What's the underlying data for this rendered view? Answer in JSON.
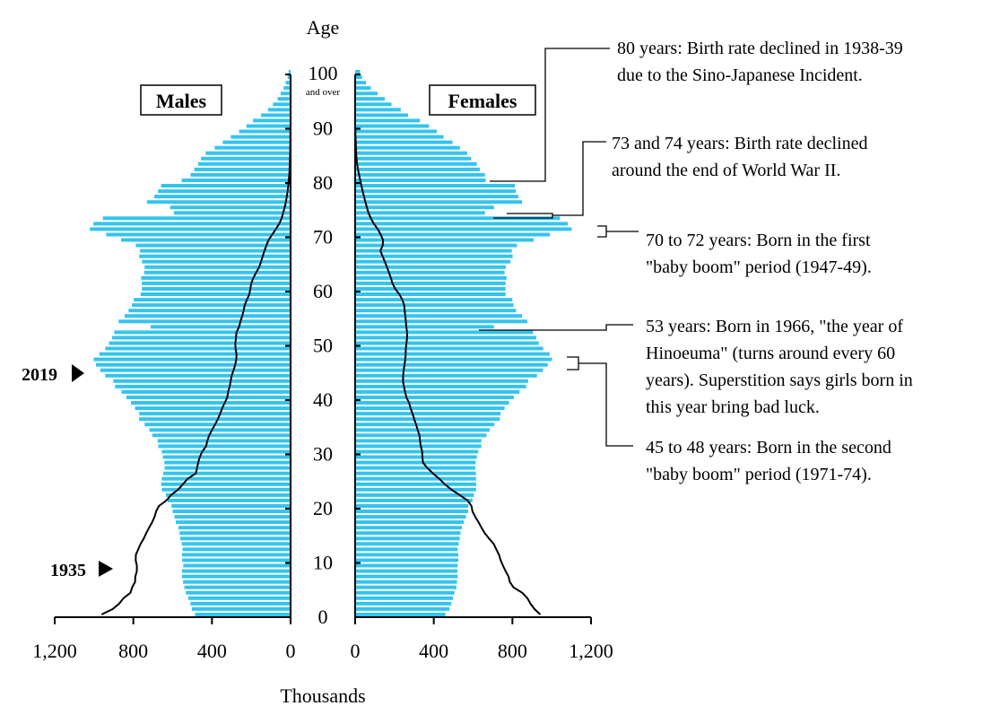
{
  "chart_data": {
    "type": "bar",
    "orientation": "population-pyramid",
    "units": "Thousands",
    "age_axis_title": "Age",
    "age_ticks": [
      "0",
      "10",
      "20",
      "30",
      "40",
      "50",
      "60",
      "70",
      "80",
      "90",
      "100"
    ],
    "age_top_note": "and over",
    "xlabel": "Thousands",
    "x_ticks_left": [
      "1,200",
      "800",
      "400",
      "0"
    ],
    "x_ticks_right": [
      "0",
      "400",
      "800",
      "1,200"
    ],
    "xlim": [
      0,
      1200
    ],
    "panel_labels": {
      "males": "Males",
      "females": "Females"
    },
    "series": [
      {
        "name": "Males",
        "values": [
          486,
          503,
          509,
          521,
          533,
          540,
          547,
          553,
          553,
          546,
          551,
          553,
          550,
          554,
          561,
          565,
          571,
          584,
          591,
          600,
          606,
          625,
          634,
          655,
          658,
          655,
          648,
          641,
          642,
          650,
          655,
          673,
          676,
          703,
          718,
          743,
          771,
          770,
          791,
          812,
          835,
          860,
          893,
          902,
          943,
          968,
          990,
          1002,
          973,
          943,
          924,
          908,
          897,
          712,
          875,
          844,
          824,
          807,
          798,
          763,
          757,
          757,
          760,
          745,
          743,
          756,
          770,
          766,
          787,
          863,
          938,
          1021,
          1003,
          955,
          594,
          613,
          731,
          693,
          675,
          659,
          554,
          509,
          490,
          470,
          456,
          432,
          386,
          345,
          304,
          262,
          225,
          191,
          150,
          115,
          90,
          66,
          50,
          35,
          25,
          15,
          10
        ]
      },
      {
        "name": "Females",
        "values": [
          459,
          480,
          489,
          498,
          505,
          515,
          518,
          522,
          520,
          521,
          525,
          525,
          522,
          527,
          532,
          536,
          543,
          553,
          564,
          575,
          576,
          597,
          604,
          615,
          616,
          615,
          614,
          611,
          613,
          619,
          626,
          642,
          642,
          668,
          684,
          708,
          736,
          740,
          760,
          783,
          807,
          836,
          870,
          880,
          925,
          955,
          980,
          1002,
          989,
          957,
          934,
          921,
          905,
          706,
          876,
          849,
          819,
          806,
          800,
          765,
          765,
          765,
          770,
          760,
          766,
          790,
          801,
          797,
          823,
          908,
          991,
          1102,
          1082,
          1042,
          660,
          706,
          849,
          830,
          817,
          813,
          664,
          660,
          634,
          619,
          590,
          570,
          533,
          495,
          450,
          415,
          376,
          330,
          269,
          232,
          185,
          151,
          114,
          80,
          55,
          35,
          25
        ]
      },
      {
        "name": "1935",
        "values_males": [
          962,
          905,
          872,
          850,
          815,
          806,
          791,
          790,
          782,
          782,
          788,
          787,
          775,
          763,
          747,
          734,
          720,
          704,
          692,
          684,
          670,
          632,
          608,
          572,
          548,
          524,
          482,
          476,
          470,
          462,
          450,
          430,
          424,
          414,
          400,
          384,
          370,
          358,
          348,
          335,
          322,
          318,
          310,
          305,
          300,
          290,
          282,
          276,
          275,
          280,
          281,
          278,
          275,
          262,
          255,
          246,
          239,
          233,
          222,
          210,
          205,
          200,
          190,
          175,
          160,
          150,
          142,
          133,
          123,
          112,
          94,
          75,
          58,
          45,
          38,
          30,
          24,
          19,
          15,
          12,
          9,
          7,
          5,
          4,
          3,
          2,
          2,
          1,
          1,
          1,
          0
        ],
        "values_females": [
          942,
          912,
          892,
          876,
          850,
          805,
          787,
          780,
          765,
          752,
          740,
          732,
          718,
          705,
          681,
          659,
          643,
          628,
          611,
          597,
          592,
          572,
          532,
          490,
          456,
          428,
          396,
          367,
          345,
          342,
          341,
          334,
          330,
          327,
          318,
          310,
          300,
          292,
          282,
          274,
          261,
          254,
          248,
          243,
          244,
          247,
          251,
          255,
          257,
          258,
          261,
          264,
          264,
          260,
          258,
          255,
          252,
          249,
          240,
          225,
          204,
          190,
          182,
          172,
          162,
          151,
          140,
          128,
          140,
          142,
          130,
          115,
          95,
          80,
          68,
          60,
          52,
          45,
          38,
          32,
          26,
          20,
          14,
          10,
          7,
          5,
          4,
          3,
          2,
          1,
          0
        ]
      }
    ],
    "markers": [
      {
        "label": "2019",
        "age": 45
      },
      {
        "label": "1935",
        "age": 9
      }
    ],
    "annotations": [
      {
        "age": 80,
        "lines": [
          "80 years:  Birth rate declined in 1938-39",
          "due to the Sino-Japanese Incident."
        ]
      },
      {
        "age": 73.5,
        "lines": [
          "73 and 74 years:  Birth rate declined",
          "around the end of World War II."
        ]
      },
      {
        "age": 71,
        "lines": [
          "70 to 72 years:  Born in the first",
          "\"baby boom\" period (1947-49)."
        ]
      },
      {
        "age": 53,
        "lines": [
          "53 years:  Born in 1966, \"the year of",
          "Hinoeuma\" (turns around every 60",
          "years). Superstition says girls born in",
          "this year bring bad luck."
        ]
      },
      {
        "age": 46.5,
        "lines": [
          "45 to 48 years:  Born in the second",
          "\"baby boom\" period (1971-74)."
        ]
      }
    ],
    "bar_color": "#33c4ee",
    "line_color": "#000000"
  }
}
